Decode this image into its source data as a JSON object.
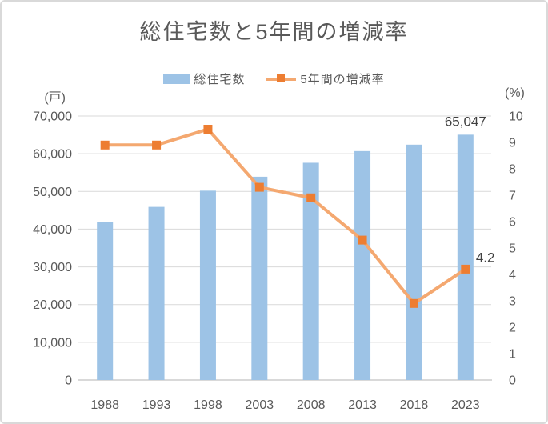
{
  "chart_data": {
    "type": "combo-bar-line",
    "title": "総住宅数と5年間の増減率",
    "categories": [
      "1988",
      "1993",
      "1998",
      "2003",
      "2008",
      "2013",
      "2018",
      "2023"
    ],
    "series": [
      {
        "name": "総住宅数",
        "type": "bar",
        "axis": "left",
        "color": "#9DC3E6",
        "values": [
          42000,
          45900,
          50200,
          53900,
          57600,
          60700,
          62400,
          65047
        ]
      },
      {
        "name": "5年間の増減率",
        "type": "line",
        "axis": "right",
        "line_color": "#F4A870",
        "marker_color": "#ED7D31",
        "values": [
          8.9,
          8.9,
          9.5,
          7.3,
          6.9,
          5.3,
          2.9,
          4.2
        ]
      }
    ],
    "left_axis": {
      "unit": "(戸)",
      "min": 0,
      "max": 70000,
      "step": 10000,
      "ticks": [
        "0",
        "10,000",
        "20,000",
        "30,000",
        "40,000",
        "50,000",
        "60,000",
        "70,000"
      ]
    },
    "right_axis": {
      "unit": "(%)",
      "min": 0,
      "max": 10,
      "step": 1,
      "ticks": [
        "0",
        "1",
        "2",
        "3",
        "4",
        "5",
        "6",
        "7",
        "8",
        "9",
        "10"
      ]
    },
    "data_labels": [
      {
        "series": 0,
        "index": 7,
        "text": "65,047"
      },
      {
        "series": 1,
        "index": 7,
        "text": "4.2"
      }
    ],
    "grid": "horizontal",
    "legend_position": "top",
    "text_color": "#595959",
    "data_label_color": "#404040",
    "grid_color": "#D9D9D9"
  }
}
